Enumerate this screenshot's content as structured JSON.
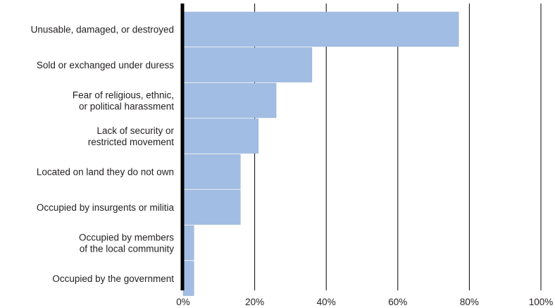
{
  "chart_data": {
    "type": "bar",
    "orientation": "horizontal",
    "title": "",
    "xlabel": "",
    "ylabel": "",
    "categories": [
      [
        "Unusable, damaged, or destroyed"
      ],
      [
        "Sold or exchanged under duress"
      ],
      [
        "Fear of religious, ethnic,",
        "or political harassment"
      ],
      [
        "Lack of security or",
        "restricted movement"
      ],
      [
        "Located on land they do not own"
      ],
      [
        "Occupied by insurgents or militia"
      ],
      [
        "Occupied by members",
        "of the local community"
      ],
      [
        "Occupied by the government"
      ]
    ],
    "values": [
      77,
      36,
      26,
      21,
      16,
      16,
      3,
      3
    ],
    "xlim": [
      0,
      100
    ],
    "ticks": [
      0,
      20,
      40,
      60,
      80,
      100
    ],
    "tick_labels": [
      "0%",
      "20%",
      "40%",
      "60%",
      "80%",
      "100%"
    ],
    "grid": true,
    "legend": "none",
    "colors": {
      "bar": "#a2bde3",
      "bar_stroke": "#8eaad3",
      "axis": "#000000",
      "grid": "#000000",
      "text": "#231f20"
    }
  }
}
